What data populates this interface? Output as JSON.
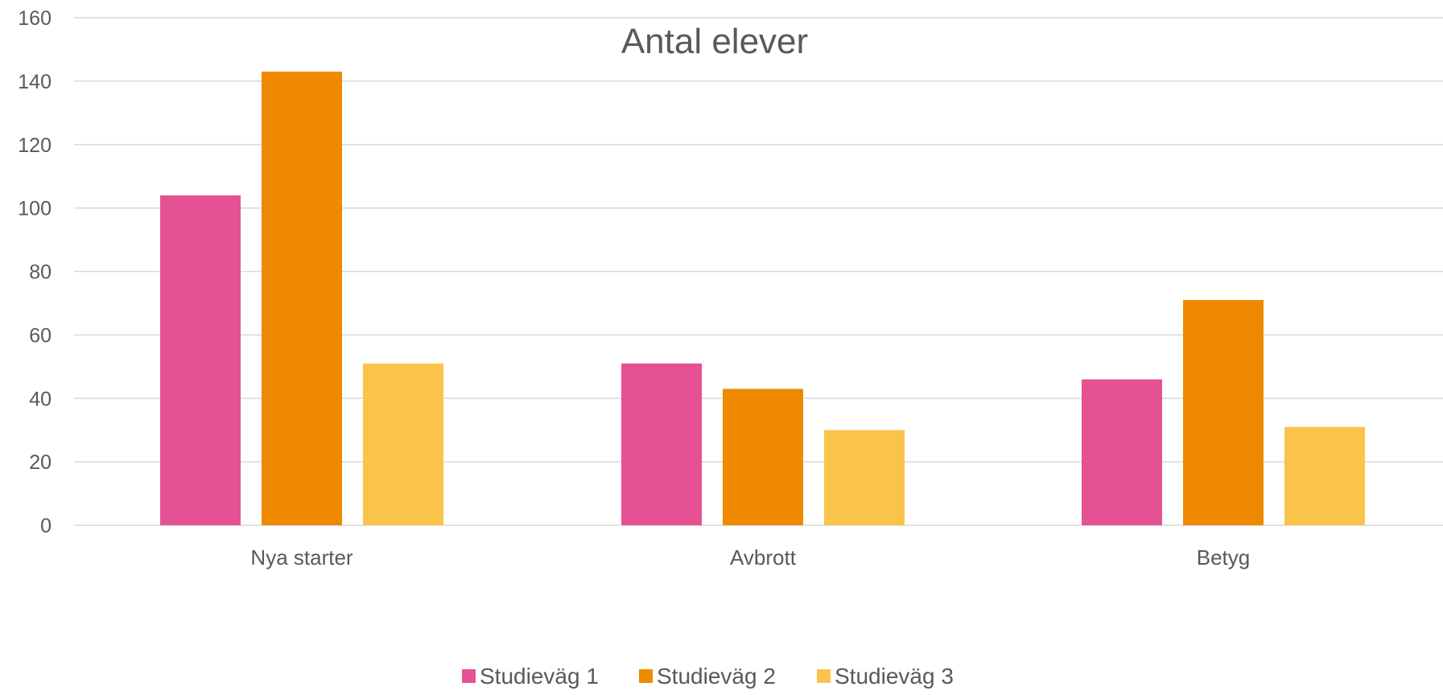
{
  "chart_data": {
    "type": "bar",
    "title": "Antal elever",
    "xlabel": "",
    "ylabel": "",
    "categories": [
      "Nya starter",
      "Avbrott",
      "Betyg"
    ],
    "series": [
      {
        "name": "Studieväg 1",
        "color": "#e45293",
        "values": [
          104,
          51,
          46
        ]
      },
      {
        "name": "Studieväg 2",
        "color": "#ef8a00",
        "values": [
          143,
          43,
          71
        ]
      },
      {
        "name": "Studieväg 3",
        "color": "#fac44b",
        "values": [
          51,
          30,
          31
        ]
      }
    ],
    "ylim": [
      0,
      160
    ],
    "yticks": [
      0,
      20,
      40,
      60,
      80,
      100,
      120,
      140,
      160
    ],
    "grid": true,
    "legend": "bottom-center"
  }
}
